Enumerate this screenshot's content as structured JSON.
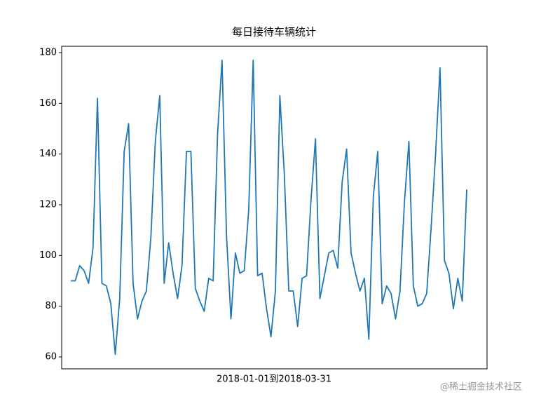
{
  "chart_data": {
    "type": "line",
    "title": "每日接待车辆统计",
    "x_label": "2018-01-01到2018-03-31",
    "annotations": [
      "@稀土掘金技术社区"
    ],
    "color": "#1f77b4",
    "values": [
      90,
      90,
      96,
      94,
      89,
      103,
      162,
      89,
      88,
      81,
      61,
      83,
      141,
      152,
      89,
      75,
      82,
      86,
      107,
      145,
      163,
      89,
      105,
      93,
      83,
      96,
      141,
      141,
      87,
      82,
      78,
      91,
      90,
      148,
      177,
      108,
      75,
      101,
      93,
      94,
      118,
      177,
      92,
      93,
      79,
      68,
      86,
      163,
      132,
      86,
      86,
      72,
      91,
      92,
      122,
      146,
      83,
      92,
      101,
      102,
      95,
      129,
      142,
      101,
      93,
      86,
      91,
      67,
      123,
      141,
      81,
      88,
      85,
      75,
      86,
      121,
      145,
      88,
      80,
      81,
      85,
      111,
      140,
      174,
      98,
      93,
      79,
      91,
      82,
      126
    ],
    "ylim": [
      55.3,
      182.5
    ],
    "yticks": [
      60,
      80,
      100,
      120,
      140,
      160,
      180
    ],
    "grid": false
  }
}
